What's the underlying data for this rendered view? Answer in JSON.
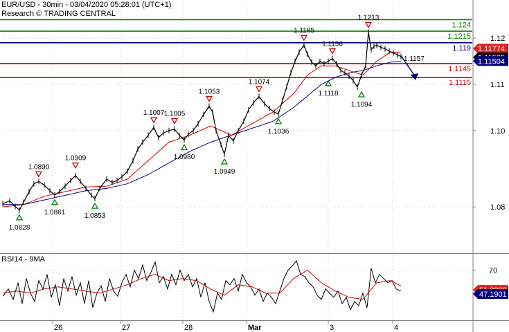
{
  "header": {
    "symbol_line": "EUR/USD - 30min - 03/04/2020 05:28:01 (UTC+1)",
    "research_line": "Research © TRADING CENTRAL"
  },
  "colors": {
    "price": "#000000",
    "ma_fast": "#cc0000",
    "ma_slow": "#000080",
    "resistance": "#cc0000",
    "support_green": "#008000",
    "pivot": "#000080",
    "grid": "#c8c8c8",
    "marker_red": "#cc0000",
    "marker_green": "#008000",
    "badge_red": "#e02020",
    "badge_black": "#000000",
    "badge_blue": "#000080",
    "badge_rsi_red": "#e02020",
    "badge_rsi_blue": "#000080",
    "arrow": "#000080"
  },
  "chart_data": [
    {
      "type": "line",
      "title": "",
      "ylim": [
        1.0735,
        1.1275
      ],
      "x_domain": [
        0,
        575
      ],
      "y_ticks": [
        {
          "label": "1.12",
          "value": 1.12
        },
        {
          "label": "1.11",
          "value": 1.11
        },
        {
          "label": "1.10",
          "value": 1.1
        },
        {
          "label": "1.08",
          "value": 1.0835
        }
      ],
      "x_ticks": [
        {
          "label": "26",
          "value": 72
        },
        {
          "label": "27",
          "value": 170
        },
        {
          "label": "28",
          "value": 260
        },
        {
          "label": "Mar",
          "value": 352
        },
        {
          "label": "3",
          "value": 470
        },
        {
          "label": "4",
          "value": 563
        }
      ],
      "levels": [
        {
          "label": "1.124",
          "value": 1.124,
          "kind": "support_green"
        },
        {
          "label": "1.1215",
          "value": 1.1215,
          "kind": "support_green"
        },
        {
          "label": "1.119",
          "value": 1.119,
          "kind": "pivot"
        },
        {
          "label": "1.1145",
          "value": 1.1145,
          "kind": "resistance"
        },
        {
          "label": "1.1115",
          "value": 1.1115,
          "kind": "resistance"
        }
      ],
      "price_series": {
        "x": [
          0,
          10,
          18,
          24,
          30,
          38,
          45,
          52,
          60,
          68,
          75,
          82,
          90,
          98,
          105,
          112,
          120,
          128,
          133,
          140,
          150,
          158,
          165,
          172,
          180,
          188,
          195,
          202,
          210,
          218,
          225,
          232,
          240,
          248,
          255,
          262,
          268,
          275,
          282,
          290,
          298,
          303,
          308,
          315,
          320,
          326,
          333,
          340,
          348,
          355,
          362,
          370,
          378,
          385,
          392,
          398,
          404,
          410,
          416,
          422,
          428,
          435,
          440,
          446,
          452,
          458,
          464,
          470,
          476,
          482,
          488,
          494,
          500,
          506,
          512,
          518,
          524,
          528,
          532,
          536,
          540,
          546,
          552,
          558,
          564,
          570,
          575
        ],
        "values": [
          1.0842,
          1.0848,
          1.0836,
          1.0828,
          1.0845,
          1.0868,
          1.0885,
          1.089,
          1.0882,
          1.087,
          1.0861,
          1.0868,
          1.088,
          1.0892,
          1.0903,
          1.089,
          1.0875,
          1.086,
          1.0853,
          1.0875,
          1.0895,
          1.0888,
          1.0892,
          1.09,
          1.0912,
          1.0935,
          1.096,
          1.0975,
          1.099,
          1.1007,
          1.0985,
          1.0995,
          1.1,
          1.1003,
          1.099,
          1.098,
          1.0992,
          1.1,
          1.1015,
          1.1035,
          1.1053,
          1.104,
          1.1,
          1.097,
          1.0949,
          1.099,
          1.0978,
          1.1,
          1.102,
          1.1045,
          1.106,
          1.1074,
          1.1058,
          1.1048,
          1.104,
          1.1036,
          1.1065,
          1.1095,
          1.1125,
          1.115,
          1.117,
          1.1185,
          1.1165,
          1.1148,
          1.114,
          1.115,
          1.1145,
          1.115,
          1.1156,
          1.1145,
          1.113,
          1.1125,
          1.1118,
          1.1108,
          1.1094,
          1.112,
          1.114,
          1.1213,
          1.1175,
          1.1182,
          1.1185,
          1.118,
          1.1177,
          1.1172,
          1.1168,
          1.1164,
          1.116
        ]
      },
      "ma_fast": {
        "x": [
          0,
          30,
          60,
          90,
          120,
          150,
          180,
          210,
          240,
          270,
          300,
          330,
          360,
          390,
          420,
          440,
          460,
          480,
          500,
          520,
          540,
          560,
          575
        ],
        "values": [
          1.0835,
          1.084,
          1.0858,
          1.0868,
          1.0878,
          1.088,
          1.0895,
          1.0935,
          1.0975,
          1.099,
          1.101,
          1.099,
          1.1015,
          1.104,
          1.108,
          1.112,
          1.114,
          1.114,
          1.113,
          1.112,
          1.115,
          1.117,
          1.1168
        ]
      },
      "ma_slow": {
        "x": [
          0,
          30,
          60,
          90,
          120,
          150,
          180,
          210,
          240,
          270,
          300,
          330,
          360,
          390,
          420,
          440,
          460,
          480,
          500,
          520,
          540,
          560,
          575
        ],
        "values": [
          1.084,
          1.084,
          1.085,
          1.086,
          1.087,
          1.0875,
          1.0885,
          1.0905,
          1.093,
          1.0955,
          1.0975,
          1.099,
          1.1005,
          1.102,
          1.105,
          1.1075,
          1.11,
          1.1115,
          1.1125,
          1.113,
          1.114,
          1.1148,
          1.115
        ]
      },
      "highs": [
        {
          "label": "1.0890",
          "x": 52,
          "value": 1.089
        },
        {
          "label": "1.0909",
          "x": 105,
          "value": 1.0909
        },
        {
          "label": "1.1007",
          "x": 218,
          "value": 1.1007
        },
        {
          "label": "1.1005",
          "x": 248,
          "value": 1.1005
        },
        {
          "label": "1.1053",
          "x": 298,
          "value": 1.1053
        },
        {
          "label": "1.1074",
          "x": 370,
          "value": 1.1074
        },
        {
          "label": "1.1185",
          "x": 435,
          "value": 1.1185
        },
        {
          "label": "1.1156",
          "x": 476,
          "value": 1.1156
        },
        {
          "label": "1.1213",
          "x": 528,
          "value": 1.1213
        }
      ],
      "lows": [
        {
          "label": "1.0828",
          "x": 24,
          "value": 1.0828
        },
        {
          "label": "1.0861",
          "x": 75,
          "value": 1.0861
        },
        {
          "label": "1.0853",
          "x": 133,
          "value": 1.0853
        },
        {
          "label": "1.0980",
          "x": 262,
          "value": 1.098
        },
        {
          "label": "1.0949",
          "x": 320,
          "value": 1.0949
        },
        {
          "label": "1.1036",
          "x": 398,
          "value": 1.1036
        },
        {
          "label": "1.1118",
          "x": 470,
          "value": 1.1118
        },
        {
          "label": "1.1094",
          "x": 518,
          "value": 1.1094
        }
      ],
      "target": {
        "label": "1.1157",
        "x": 575,
        "value": 1.1157
      },
      "projection": {
        "from_x": 575,
        "from_value": 1.1162,
        "to_x": 595,
        "to_value": 1.1118
      },
      "price_badges": [
        {
          "label": "1.11774",
          "value": 1.11774,
          "kind": "badge_red"
        },
        {
          "label": "1.11585",
          "value": 1.11585,
          "kind": "badge_black"
        },
        {
          "label": "1.11504",
          "value": 1.11504,
          "kind": "badge_blue"
        }
      ]
    },
    {
      "type": "line",
      "title": "RSI14 - 9MA",
      "ylim": [
        22,
        85
      ],
      "x_domain": [
        0,
        575
      ],
      "y_ticks": [
        {
          "label": "70",
          "value": 70
        }
      ],
      "rsi": {
        "x": [
          0,
          8,
          15,
          22,
          28,
          34,
          40,
          46,
          52,
          58,
          64,
          70,
          76,
          82,
          88,
          94,
          100,
          106,
          112,
          118,
          124,
          130,
          136,
          142,
          148,
          154,
          160,
          166,
          172,
          178,
          184,
          190,
          196,
          202,
          208,
          214,
          220,
          226,
          232,
          238,
          244,
          250,
          256,
          262,
          268,
          274,
          280,
          286,
          292,
          298,
          304,
          310,
          316,
          322,
          328,
          334,
          340,
          346,
          352,
          358,
          364,
          370,
          376,
          382,
          388,
          394,
          400,
          406,
          412,
          418,
          424,
          430,
          436,
          442,
          448,
          454,
          460,
          466,
          472,
          478,
          484,
          490,
          496,
          502,
          508,
          514,
          520,
          526,
          532,
          538,
          544,
          550,
          556,
          562,
          568,
          575
        ],
        "values": [
          45,
          52,
          42,
          58,
          38,
          62,
          48,
          40,
          60,
          52,
          66,
          44,
          56,
          36,
          62,
          50,
          64,
          46,
          58,
          38,
          60,
          34,
          48,
          55,
          40,
          62,
          50,
          45,
          58,
          66,
          54,
          70,
          62,
          75,
          60,
          68,
          78,
          58,
          64,
          52,
          66,
          56,
          70,
          60,
          66,
          54,
          62,
          44,
          58,
          40,
          30,
          48,
          42,
          60,
          56,
          62,
          50,
          66,
          58,
          54,
          46,
          52,
          40,
          48,
          44,
          38,
          50,
          62,
          70,
          74,
          79,
          66,
          64,
          58,
          54,
          46,
          42,
          52,
          48,
          44,
          50,
          38,
          44,
          32,
          40,
          36,
          48,
          34,
          72,
          58,
          66,
          62,
          58,
          60,
          52,
          50
        ]
      },
      "rsi_ma": {
        "x": [
          0,
          20,
          40,
          60,
          80,
          100,
          120,
          140,
          160,
          180,
          200,
          220,
          240,
          260,
          280,
          300,
          320,
          340,
          360,
          380,
          400,
          420,
          440,
          460,
          480,
          500,
          520,
          540,
          560,
          575
        ],
        "values": [
          48,
          50,
          48,
          52,
          54,
          52,
          50,
          48,
          52,
          56,
          62,
          66,
          60,
          62,
          60,
          52,
          46,
          56,
          54,
          48,
          48,
          62,
          70,
          58,
          50,
          44,
          42,
          58,
          60,
          55
        ]
      },
      "badges": [
        {
          "label": "51.0988",
          "value": 51.1,
          "kind": "badge_rsi_red"
        },
        {
          "label": "47.1901",
          "value": 47.2,
          "kind": "badge_rsi_blue"
        }
      ]
    }
  ]
}
